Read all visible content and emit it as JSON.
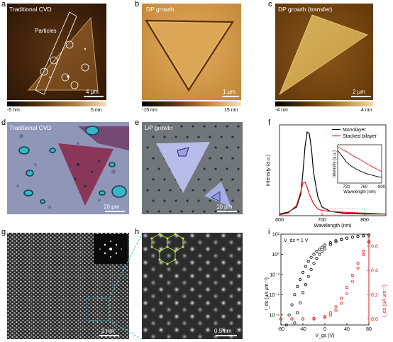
{
  "figure": {
    "panels": {
      "a": {
        "letter": "a",
        "title": "Traditional CVD",
        "annotation": "Particles",
        "scale": "4 μm",
        "cbar_min": "-5 nm",
        "cbar_max": "5 nm"
      },
      "b": {
        "letter": "b",
        "title": "DP growth",
        "scale": "1 μm",
        "cbar_min": "-15 nm",
        "cbar_max": "15 nm"
      },
      "c": {
        "letter": "c",
        "title": "DP growth (transfer)",
        "scale": "2 μm",
        "cbar_min": "-4 nm",
        "cbar_max": "4 nm"
      },
      "d": {
        "letter": "d",
        "title": "Traditional CVD",
        "scale": "20 μm"
      },
      "e": {
        "letter": "e",
        "title": "DP growth",
        "scale": "10 μm"
      },
      "f": {
        "letter": "f"
      },
      "g": {
        "letter": "g",
        "scale": "2 nm"
      },
      "h": {
        "letter": "h",
        "scale": "0.5 nm"
      },
      "i": {
        "letter": "i"
      }
    }
  },
  "chart_data": [
    {
      "type": "line",
      "panel": "f",
      "xlabel": "Wavelength (nm)",
      "ylabel": "Intensity (a.u.)",
      "xlim": [
        600,
        850
      ],
      "xticks": [
        "600",
        "700",
        "800"
      ],
      "legend": "top-right",
      "series": [
        {
          "name": "Monolayer",
          "color": "#000000",
          "x": [
            600,
            620,
            640,
            650,
            655,
            660,
            665,
            670,
            675,
            680,
            690,
            700,
            720,
            750,
            800,
            850
          ],
          "y": [
            0.02,
            0.04,
            0.1,
            0.25,
            0.5,
            0.8,
            0.97,
            0.95,
            0.78,
            0.5,
            0.22,
            0.1,
            0.05,
            0.03,
            0.02,
            0.02
          ]
        },
        {
          "name": "Stacked bilayer",
          "color": "#e8191a",
          "x": [
            600,
            620,
            640,
            650,
            655,
            660,
            665,
            670,
            680,
            690,
            700,
            720,
            750,
            800,
            850
          ],
          "y": [
            0.01,
            0.03,
            0.12,
            0.28,
            0.38,
            0.39,
            0.33,
            0.25,
            0.14,
            0.08,
            0.06,
            0.05,
            0.04,
            0.03,
            0.02
          ]
        }
      ],
      "inset": {
        "xlabel": "Wavelength (nm)",
        "ylabel": "Intensity (a.u.)",
        "xlim": [
          700,
          800
        ],
        "xticks": [
          "720",
          "760",
          "800"
        ],
        "series": [
          {
            "name": "Monolayer",
            "color": "#000000",
            "x": [
              700,
              710,
              720,
              730,
              740,
              750,
              760,
              770,
              780,
              790,
              800
            ],
            "y": [
              0.85,
              0.7,
              0.55,
              0.45,
              0.38,
              0.32,
              0.27,
              0.23,
              0.2,
              0.17,
              0.15
            ]
          },
          {
            "name": "Stacked bilayer",
            "color": "#e8191a",
            "x": [
              700,
              710,
              720,
              730,
              740,
              750,
              760,
              770,
              780,
              790,
              800
            ],
            "y": [
              0.95,
              0.88,
              0.82,
              0.75,
              0.68,
              0.62,
              0.55,
              0.48,
              0.42,
              0.36,
              0.3
            ]
          }
        ]
      }
    },
    {
      "type": "scatter",
      "panel": "i",
      "annotation": "V_ds = 1 V",
      "xlabel": "V_gs (V)",
      "ylabel_left": "I_ds (μA μm⁻¹)",
      "ylabel_right": "I_ds (μA μm⁻¹)",
      "xlim": [
        -80,
        80
      ],
      "xticks": [
        "-80",
        "-40",
        "0",
        "40",
        "80"
      ],
      "left_ticks": [
        "10²",
        "10⁰",
        "10⁻²",
        "10⁻⁴",
        "10⁻⁶"
      ],
      "left_log_range": [
        -7,
        2
      ],
      "right_ticks": [
        "0.0",
        "0.2",
        "0.4",
        "0.6"
      ],
      "right_range": [
        -0.05,
        0.7
      ],
      "log_fwd": {
        "color": "#000000",
        "x": [
          -70,
          -65,
          -60,
          -55,
          -50,
          -45,
          -40,
          -35,
          -30,
          -25,
          -20,
          -15,
          -10,
          -5,
          0,
          10,
          20,
          30,
          40,
          50,
          60,
          70,
          80
        ],
        "logy": [
          -7.0,
          -6.0,
          -5.0,
          -4.0,
          -3.2,
          -2.5,
          -1.8,
          -1.2,
          -0.7,
          -0.3,
          0.0,
          0.3,
          0.5,
          0.7,
          0.9,
          1.15,
          1.35,
          1.5,
          1.6,
          1.7,
          1.78,
          1.84,
          1.9
        ]
      },
      "log_rev": {
        "color": "#000000",
        "x": [
          -55,
          -50,
          -45,
          -40,
          -35,
          -30,
          -25,
          -20,
          -15,
          -10,
          -5,
          0,
          10,
          20,
          30,
          40,
          50,
          60,
          70,
          80
        ],
        "logy": [
          -6.8,
          -5.8,
          -4.8,
          -3.8,
          -3.0,
          -2.2,
          -1.5,
          -0.9,
          -0.4,
          0.0,
          0.3,
          0.55,
          0.95,
          1.25,
          1.45,
          1.6,
          1.7,
          1.78,
          1.84,
          1.9
        ]
      },
      "lin_fwd": {
        "color": "#e8191a",
        "x": [
          -80,
          -60,
          -40,
          -20,
          0,
          10,
          20,
          30,
          40,
          50,
          60,
          70,
          80
        ],
        "y": [
          0.0,
          0.0,
          0.0,
          0.005,
          0.02,
          0.05,
          0.1,
          0.17,
          0.26,
          0.36,
          0.46,
          0.56,
          0.64
        ]
      },
      "lin_rev": {
        "color": "#e8191a",
        "x": [
          -80,
          -60,
          -40,
          -20,
          0,
          10,
          20,
          30,
          40,
          50,
          60,
          70,
          80
        ],
        "y": [
          0.0,
          0.0,
          0.0,
          0.0,
          0.01,
          0.03,
          0.07,
          0.13,
          0.21,
          0.31,
          0.42,
          0.53,
          0.63
        ]
      }
    }
  ]
}
